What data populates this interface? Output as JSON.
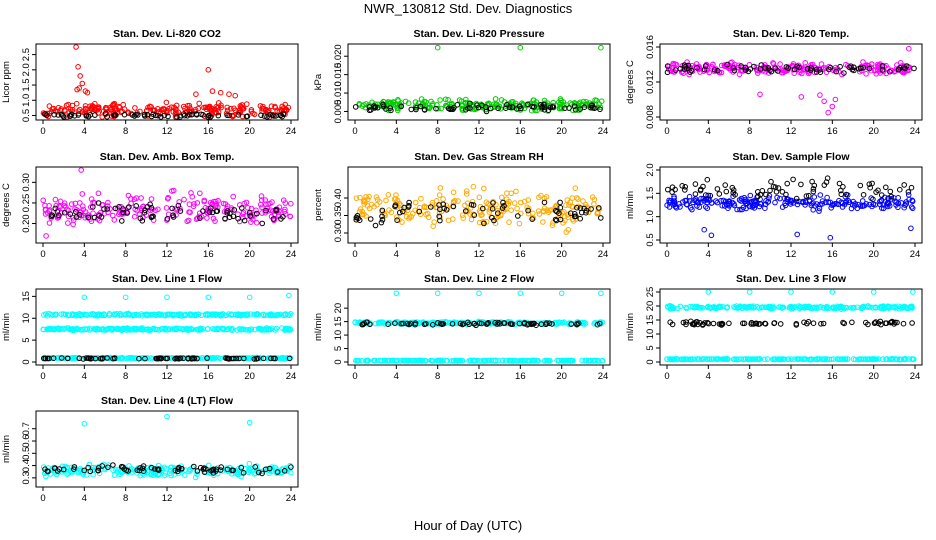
{
  "page": {
    "title": "NWR_130812  Std. Dev. Diagnostics",
    "xlabel": "Hour of Day (UTC)"
  },
  "colors": {
    "red": "#ff0000",
    "green": "#00cc00",
    "magenta": "#ff00ff",
    "orange": "#ffaa00",
    "blue": "#0000ff",
    "cyan": "#00ffff",
    "black": "#000000"
  },
  "chart_data": [
    {
      "type": "scatter",
      "title": "Stan. Dev. Li-820 CO2",
      "ylabel": "Licor ppm",
      "xlim": [
        0,
        24
      ],
      "ylim": [
        0.45,
        2.75
      ],
      "xticks": [
        0,
        4,
        8,
        12,
        16,
        20,
        24
      ],
      "yticks": [
        0.5,
        1.0,
        1.5,
        2.0,
        2.5
      ],
      "ytick_labels": [
        "0.5",
        "1.0",
        "1.5",
        "2.0",
        "2.5"
      ],
      "series": [
        {
          "color": "red",
          "base": 0.68,
          "spread": 0.18,
          "points": [
            [
              3.2,
              2.75
            ],
            [
              3.4,
              2.1
            ],
            [
              3.6,
              1.8
            ],
            [
              3.8,
              1.55
            ],
            [
              3.5,
              1.4
            ],
            [
              3.3,
              1.35
            ],
            [
              4.1,
              1.3
            ],
            [
              4.3,
              1.25
            ],
            [
              16.0,
              2.0
            ],
            [
              16.4,
              1.3
            ],
            [
              17.2,
              1.25
            ],
            [
              14.8,
              1.2
            ],
            [
              18.0,
              1.2
            ],
            [
              18.6,
              1.15
            ]
          ]
        },
        {
          "color": "black",
          "base": 0.5,
          "spread": 0.05
        }
      ]
    },
    {
      "type": "scatter",
      "title": "Stan. Dev. Li-820 Pressure",
      "ylabel": "kPa",
      "xlim": [
        0,
        24
      ],
      "ylim": [
        0.0035,
        0.0225
      ],
      "xticks": [
        0,
        4,
        8,
        12,
        16,
        20,
        24
      ],
      "yticks": [
        0.005,
        0.01,
        0.015,
        0.02
      ],
      "ytick_labels": [
        "0.005",
        "0.010",
        "0.015",
        "0.020"
      ],
      "series": [
        {
          "color": "green",
          "base": 0.0068,
          "spread": 0.0012,
          "points": [
            [
              8.0,
              0.0223
            ],
            [
              16.0,
              0.0223
            ],
            [
              23.8,
              0.0223
            ]
          ]
        },
        {
          "color": "black",
          "base": 0.006,
          "spread": 0.0008
        }
      ]
    },
    {
      "type": "scatter",
      "title": "Stan. Dev. Li-820 Temp.",
      "ylabel": "degrees C",
      "xlim": [
        0,
        24
      ],
      "ylim": [
        0.008,
        0.016
      ],
      "xticks": [
        0,
        4,
        8,
        12,
        16,
        20,
        24
      ],
      "yticks": [
        0.008,
        0.012,
        0.016
      ],
      "ytick_labels": [
        "0.008",
        "0.012",
        "0.016"
      ],
      "series": [
        {
          "color": "magenta",
          "base": 0.0135,
          "spread": 0.0006,
          "points": [
            [
              15.6,
              0.0085
            ],
            [
              16.0,
              0.0092
            ],
            [
              15.2,
              0.0098
            ],
            [
              16.3,
              0.01
            ],
            [
              14.8,
              0.0105
            ],
            [
              13.0,
              0.0103
            ],
            [
              9.0,
              0.0106
            ],
            [
              23.4,
              0.0158
            ]
          ]
        },
        {
          "color": "black",
          "base": 0.0135,
          "spread": 0.0004
        }
      ]
    },
    {
      "type": "scatter",
      "title": "Stan. Dev. Amb. Box Temp.",
      "ylabel": "degrees C",
      "xlim": [
        0,
        24
      ],
      "ylim": [
        0.16,
        0.33
      ],
      "xticks": [
        0,
        4,
        8,
        12,
        16,
        20,
        24
      ],
      "yticks": [
        0.2,
        0.25,
        0.3
      ],
      "ytick_labels": [
        "0.20",
        "0.25",
        "0.30"
      ],
      "series": [
        {
          "color": "magenta",
          "base": 0.235,
          "spread": 0.03,
          "points": [
            [
              3.7,
              0.33
            ],
            [
              0.3,
              0.17
            ]
          ]
        },
        {
          "color": "black",
          "base": 0.225,
          "spread": 0.02
        }
      ]
    },
    {
      "type": "scatter",
      "title": "Stan. Dev. Gas Stream RH",
      "ylabel": "percent",
      "xlim": [
        0,
        24
      ],
      "ylim": [
        0.28,
        0.48
      ],
      "xticks": [
        0,
        4,
        8,
        12,
        16,
        20,
        24
      ],
      "yticks": [
        0.3,
        0.35,
        0.4
      ],
      "ytick_labels": [
        "0.30",
        "0.35",
        "0.40"
      ],
      "series": [
        {
          "color": "orange",
          "base": 0.37,
          "spread": 0.045
        },
        {
          "color": "black",
          "base": 0.36,
          "spread": 0.03
        }
      ]
    },
    {
      "type": "scatter",
      "title": "Stan. Dev. Sample Flow",
      "ylabel": "ml/min",
      "xlim": [
        0,
        24
      ],
      "ylim": [
        0.5,
        2.0
      ],
      "xticks": [
        0,
        4,
        8,
        12,
        16,
        20,
        24
      ],
      "yticks": [
        0.5,
        1.0,
        1.5,
        2.0
      ],
      "ytick_labels": [
        "0.5",
        "1.0",
        "1.5",
        "2.0"
      ],
      "series": [
        {
          "color": "blue",
          "base": 1.3,
          "spread": 0.12,
          "points": [
            [
              15.8,
              0.55
            ],
            [
              4.3,
              0.6
            ],
            [
              12.6,
              0.62
            ],
            [
              23.6,
              0.75
            ],
            [
              3.6,
              0.72
            ]
          ]
        },
        {
          "color": "black",
          "base": 1.6,
          "spread": 0.18
        }
      ]
    },
    {
      "type": "scatter",
      "title": "Stan. Dev. Line 1 Flow",
      "ylabel": "ml/min",
      "xlim": [
        0,
        24
      ],
      "ylim": [
        0,
        16
      ],
      "xticks": [
        0,
        4,
        8,
        12,
        16,
        20,
        24
      ],
      "yticks": [
        0,
        5,
        10,
        15
      ],
      "ytick_labels": [
        "0",
        "5",
        "10",
        "15"
      ],
      "series": [
        {
          "color": "cyan",
          "base": 10.8,
          "spread": 0.2,
          "points": [
            [
              4.0,
              14.8
            ],
            [
              8.0,
              14.8
            ],
            [
              12.0,
              14.8
            ],
            [
              16.0,
              14.8
            ],
            [
              20.0,
              14.8
            ],
            [
              23.8,
              15.2
            ]
          ]
        },
        {
          "color": "cyan",
          "base": 7.5,
          "spread": 0.2
        },
        {
          "color": "cyan",
          "base": 0.9,
          "spread": 0.1
        },
        {
          "color": "black",
          "base": 0.8,
          "spread": 0.1
        }
      ]
    },
    {
      "type": "scatter",
      "title": "Stan. Dev. Line 2 Flow",
      "ylabel": "ml/min",
      "xlim": [
        0,
        24
      ],
      "ylim": [
        0,
        26
      ],
      "xticks": [
        0,
        4,
        8,
        12,
        16,
        20,
        24
      ],
      "yticks": [
        0,
        5,
        10,
        15,
        20
      ],
      "ytick_labels": [
        "0",
        "5",
        "10",
        "15",
        "20"
      ],
      "series": [
        {
          "color": "cyan",
          "base": 14.5,
          "spread": 0.4,
          "points": [
            [
              4.0,
              25.5
            ],
            [
              8.0,
              25.5
            ],
            [
              12.0,
              25.5
            ],
            [
              16.0,
              25.5
            ],
            [
              20.0,
              25.5
            ],
            [
              23.8,
              25.5
            ]
          ]
        },
        {
          "color": "cyan",
          "base": 0.5,
          "spread": 0.1
        },
        {
          "color": "black",
          "base": 14.2,
          "spread": 0.4
        }
      ]
    },
    {
      "type": "scatter",
      "title": "Stan. Dev. Line 3 Flow",
      "ylabel": "ml/min",
      "xlim": [
        0,
        24
      ],
      "ylim": [
        0,
        25
      ],
      "xticks": [
        0,
        4,
        8,
        12,
        16,
        20,
        24
      ],
      "yticks": [
        0,
        5,
        10,
        15,
        20,
        25
      ],
      "ytick_labels": [
        "0",
        "5",
        "10",
        "15",
        "20",
        "25"
      ],
      "series": [
        {
          "color": "cyan",
          "base": 19.5,
          "spread": 0.4,
          "points": [
            [
              4.0,
              25.0
            ],
            [
              8.0,
              25.0
            ],
            [
              12.0,
              25.0
            ],
            [
              16.0,
              25.0
            ],
            [
              20.0,
              25.0
            ],
            [
              23.8,
              25.0
            ]
          ]
        },
        {
          "color": "cyan",
          "base": 1.0,
          "spread": 0.1
        },
        {
          "color": "black",
          "base": 13.8,
          "spread": 0.5
        }
      ]
    },
    {
      "type": "scatter",
      "title": "Stan. Dev. Line 4 (LT) Flow",
      "ylabel": "ml/min",
      "xlim": [
        0,
        24
      ],
      "ylim": [
        0.25,
        0.82
      ],
      "xticks": [
        0,
        4,
        8,
        12,
        16,
        20,
        24
      ],
      "yticks": [
        0.3,
        0.4,
        0.5,
        0.6,
        0.7
      ],
      "ytick_labels": [
        "0.3",
        "0.4",
        "0.5",
        "0.6",
        "0.7"
      ],
      "series": [
        {
          "color": "cyan",
          "base": 0.36,
          "spread": 0.04,
          "points": [
            [
              4.0,
              0.74
            ],
            [
              12.0,
              0.8
            ],
            [
              20.0,
              0.75
            ]
          ]
        },
        {
          "color": "black",
          "base": 0.37,
          "spread": 0.03
        }
      ]
    }
  ]
}
